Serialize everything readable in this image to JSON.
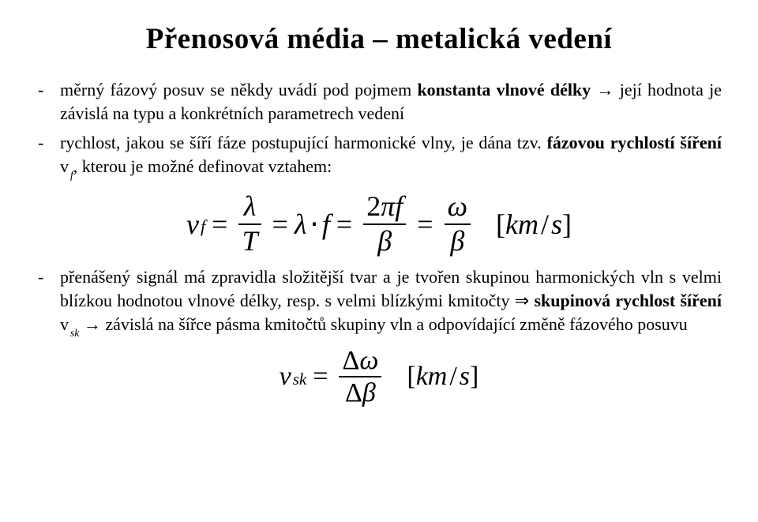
{
  "title": "Přenosová média – metalická vedení",
  "bullets": {
    "b1_pre": "měrný fázový posuv se někdy uvádí pod pojmem ",
    "b1_bold": "konstanta vlnové délky",
    "b1_post": " → její hodnota je závislá na typu a konkrétních parametrech vedení",
    "b2_pre": "rychlost, jakou se šíří fáze postupující harmonické vlny, je dána tzv. ",
    "b2_bold": "fázovou rychlostí šíření",
    "b2_mid": " v",
    "b2_sub": "f",
    "b2_post": ", kterou je možné definovat vztahem:",
    "b3_pre": "přenášený signál má zpravidla složitější tvar a je tvořen skupinou harmonických vln s velmi blízkou hodnotou vlnové délky, resp. s velmi blízkými kmitočty ⇒ ",
    "b3_bold": "skupinová rychlost šíření",
    "b3_mid": " v",
    "b3_sub": "sk",
    "b3_post": " → závislá na šířce pásma kmitočtů skupiny vln a odpovídající změně fázového posuvu"
  },
  "formula1": {
    "v": "v",
    "v_sub": "f",
    "eq": "=",
    "lambda": "λ",
    "T": "T",
    "dot": "⋅",
    "f": "f",
    "twopi_f": "2πf",
    "beta": "β",
    "omega": "ω",
    "unit_open": "[",
    "unit_km": "km",
    "unit_slash": "/",
    "unit_s": "s",
    "unit_close": "]"
  },
  "formula2": {
    "v": "v",
    "v_sub": "sk",
    "eq": "=",
    "delta_omega": "Δω",
    "delta_beta": "Δβ",
    "unit_open": "[",
    "unit_km": "km",
    "unit_slash": "/",
    "unit_s": "s",
    "unit_close": "]"
  }
}
